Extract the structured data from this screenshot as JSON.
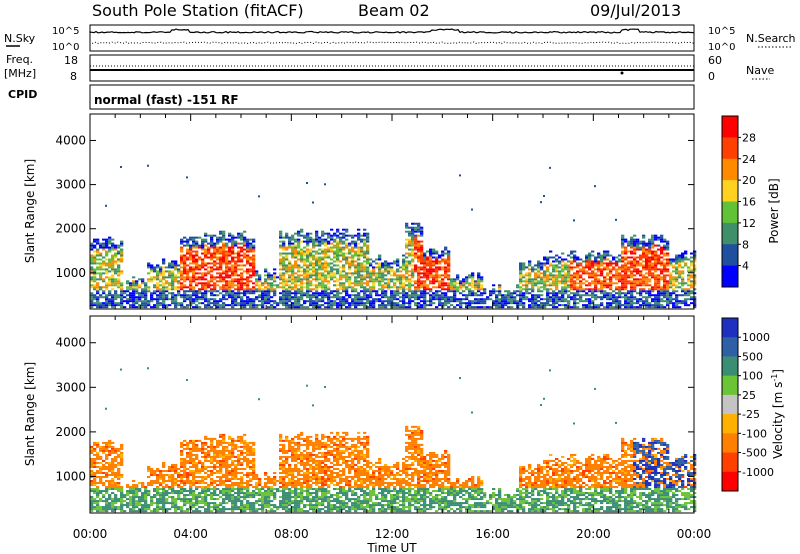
{
  "header": {
    "title": "South Pole Station (fitACF)",
    "beam": "Beam 02",
    "date": "09/Jul/2013"
  },
  "top_panels": {
    "nsky_label": "N.Sky",
    "nsky_ticks": [
      "10^5",
      "10^0"
    ],
    "nsearch_label": "N.Search",
    "nsearch_ticks": [
      "10^5",
      "10^0"
    ],
    "freq_label_line1": "Freq.",
    "freq_label_line2": "[MHz]",
    "freq_ticks": [
      "18",
      "8"
    ],
    "nave_label": "Nave",
    "nave_ticks": [
      "60",
      "0"
    ],
    "cpid_label": "CPID",
    "cpid_text": "normal (fast) -151 RF"
  },
  "chart_data": [
    {
      "type": "heatmap",
      "quantity": "power",
      "ylabel": "Slant Range [km]",
      "yticks": [
        1000,
        2000,
        3000,
        4000
      ],
      "ylim": [
        180,
        4600
      ],
      "xticks": [
        "00:00",
        "04:00",
        "08:00",
        "12:00",
        "16:00",
        "20:00",
        "00:00"
      ],
      "xlim_hours": [
        0,
        24
      ],
      "colorbar_label": "Power [dB]",
      "colorbar_ticks": [
        "28",
        "24",
        "20",
        "16",
        "12",
        "8",
        "4"
      ],
      "colorbar_colors": [
        "#ff0000",
        "#ff4000",
        "#ff8a00",
        "#ffd21f",
        "#62c235",
        "#3f8f6a",
        "#1f4f9f",
        "#0000ff"
      ]
    },
    {
      "type": "heatmap",
      "quantity": "velocity",
      "ylabel": "Slant Range [km]",
      "yticks": [
        1000,
        2000,
        3000,
        4000
      ],
      "ylim": [
        180,
        4600
      ],
      "xticks": [
        "00:00",
        "04:00",
        "08:00",
        "12:00",
        "16:00",
        "20:00",
        "00:00"
      ],
      "xlabel": "Time UT",
      "xlim_hours": [
        0,
        24
      ],
      "colorbar_label": "Velocity [m s^-1]",
      "colorbar_ticks": [
        "1000",
        "500",
        "100",
        "25",
        "-25",
        "-100",
        "-500",
        "-1000"
      ],
      "colorbar_colors": [
        "#1f2fc0",
        "#2f60a6",
        "#3a8e74",
        "#6bc435",
        "#c4c4c4",
        "#ffb000",
        "#ff8000",
        "#ff4000",
        "#ff0000"
      ]
    }
  ]
}
